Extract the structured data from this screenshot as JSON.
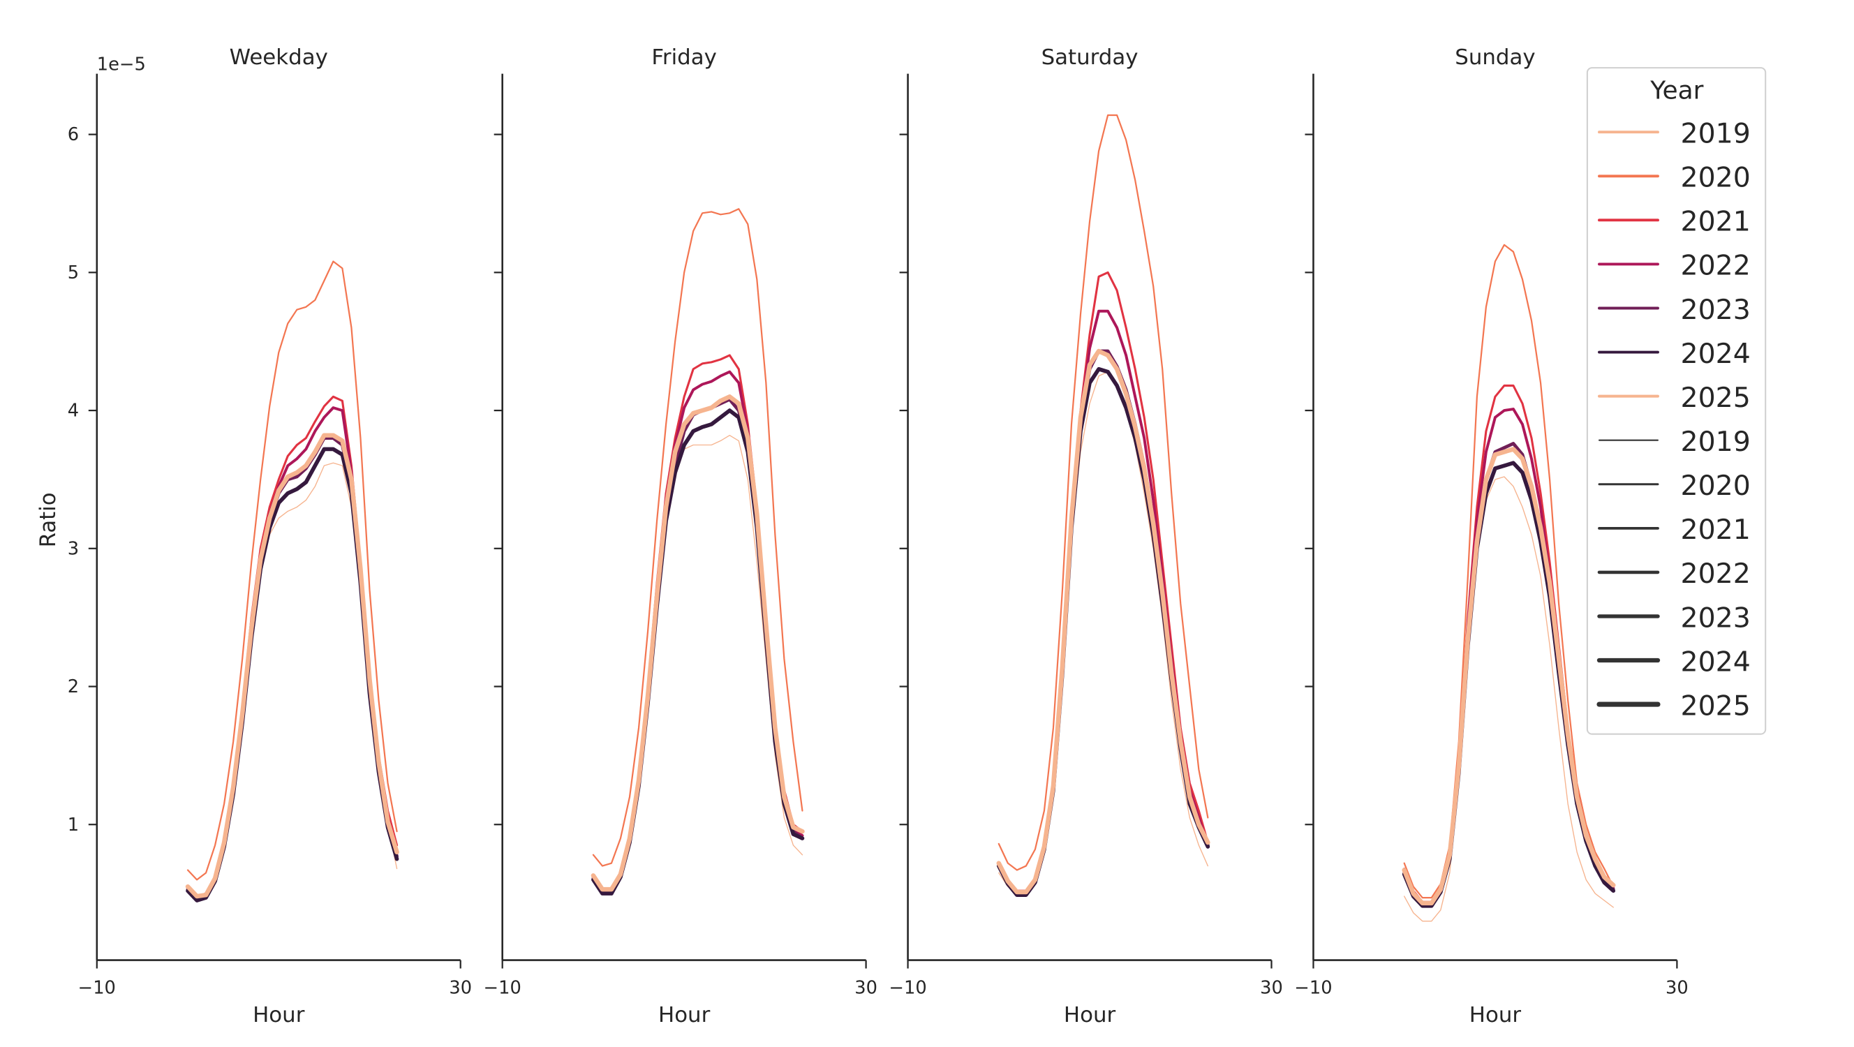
{
  "chart_data": {
    "type": "line",
    "x_label": "Hour",
    "y_label": "Ratio",
    "y_offset_text": "1e−5",
    "xlim": [
      -10,
      30
    ],
    "ylim": [
      0,
      6.43
    ],
    "x_ticks": [
      -10,
      30
    ],
    "x_tick_labels": [
      "−10",
      "30"
    ],
    "y_ticks": [
      1,
      2,
      3,
      4,
      5,
      6
    ],
    "y_tick_labels": [
      "1",
      "2",
      "3",
      "4",
      "5",
      "6"
    ],
    "hours": [
      0,
      1,
      2,
      3,
      4,
      5,
      6,
      7,
      8,
      9,
      10,
      11,
      12,
      13,
      14,
      15,
      16,
      17,
      18,
      19,
      20,
      21,
      22,
      23
    ],
    "colors": {
      "2019": "#f6b48f",
      "2020": "#f37651",
      "2021": "#e13342",
      "2022": "#ad1759",
      "2023": "#701f57",
      "2024": "#35193e",
      "2025": "#f6b48f"
    },
    "line_widths": {
      "2019": 0.8,
      "2020": 1.3,
      "2021": 1.8,
      "2022": 2.3,
      "2023": 2.8,
      "2024": 3.3,
      "2025": 3.8
    },
    "legend": {
      "title": "Year",
      "placement": "top-right",
      "hue_entries": [
        "2019",
        "2020",
        "2021",
        "2022",
        "2023",
        "2024",
        "2025"
      ],
      "size_entries": [
        "2019",
        "2020",
        "2021",
        "2022",
        "2023",
        "2024",
        "2025"
      ]
    },
    "panels": [
      {
        "title": "Weekday",
        "series": [
          {
            "name": "2019",
            "values": [
              0.55,
              0.47,
              0.48,
              0.6,
              0.86,
              1.25,
              1.75,
              2.35,
              2.85,
              3.1,
              3.22,
              3.27,
              3.3,
              3.35,
              3.45,
              3.6,
              3.62,
              3.6,
              3.3,
              2.7,
              1.95,
              1.4,
              1.0,
              0.68
            ]
          },
          {
            "name": "2020",
            "values": [
              0.67,
              0.6,
              0.65,
              0.85,
              1.15,
              1.6,
              2.2,
              2.9,
              3.5,
              4.03,
              4.42,
              4.63,
              4.73,
              4.75,
              4.8,
              4.94,
              5.08,
              5.03,
              4.6,
              3.8,
              2.7,
              1.9,
              1.3,
              0.95
            ]
          },
          {
            "name": "2021",
            "values": [
              0.55,
              0.48,
              0.5,
              0.62,
              0.88,
              1.3,
              1.85,
              2.5,
              3.0,
              3.3,
              3.5,
              3.67,
              3.75,
              3.8,
              3.92,
              4.03,
              4.1,
              4.07,
              3.6,
              2.9,
              2.1,
              1.5,
              1.1,
              0.85
            ]
          },
          {
            "name": "2022",
            "values": [
              0.54,
              0.47,
              0.49,
              0.61,
              0.87,
              1.28,
              1.82,
              2.45,
              2.95,
              3.25,
              3.45,
              3.6,
              3.65,
              3.72,
              3.85,
              3.95,
              4.02,
              4.0,
              3.55,
              2.85,
              2.05,
              1.45,
              1.05,
              0.8
            ]
          },
          {
            "name": "2023",
            "values": [
              0.53,
              0.46,
              0.48,
              0.6,
              0.86,
              1.26,
              1.78,
              2.4,
              2.9,
              3.2,
              3.4,
              3.5,
              3.52,
              3.58,
              3.68,
              3.8,
              3.8,
              3.75,
              3.45,
              2.8,
              2.0,
              1.4,
              1.0,
              0.77
            ]
          },
          {
            "name": "2024",
            "values": [
              0.52,
              0.45,
              0.47,
              0.59,
              0.84,
              1.22,
              1.74,
              2.35,
              2.85,
              3.15,
              3.33,
              3.4,
              3.43,
              3.48,
              3.6,
              3.72,
              3.72,
              3.68,
              3.4,
              2.75,
              1.95,
              1.38,
              0.98,
              0.75
            ]
          },
          {
            "name": "2025",
            "values": [
              0.55,
              0.48,
              0.49,
              0.61,
              0.87,
              1.27,
              1.8,
              2.42,
              2.92,
              3.22,
              3.42,
              3.52,
              3.55,
              3.6,
              3.7,
              3.82,
              3.82,
              3.78,
              3.5,
              2.85,
              2.05,
              1.45,
              1.02,
              0.8
            ]
          }
        ]
      },
      {
        "title": "Friday",
        "series": [
          {
            "name": "2019",
            "values": [
              0.6,
              0.52,
              0.53,
              0.63,
              0.88,
              1.3,
              1.9,
              2.6,
              3.2,
              3.55,
              3.72,
              3.75,
              3.75,
              3.75,
              3.78,
              3.82,
              3.78,
              3.5,
              2.9,
              2.2,
              1.5,
              1.05,
              0.85,
              0.78
            ]
          },
          {
            "name": "2020",
            "values": [
              0.78,
              0.7,
              0.72,
              0.9,
              1.2,
              1.7,
              2.4,
              3.2,
              3.9,
              4.5,
              5.0,
              5.3,
              5.43,
              5.44,
              5.42,
              5.43,
              5.46,
              5.35,
              4.95,
              4.2,
              3.1,
              2.2,
              1.6,
              1.1
            ]
          },
          {
            "name": "2021",
            "values": [
              0.63,
              0.53,
              0.54,
              0.65,
              0.9,
              1.35,
              2.0,
              2.75,
              3.4,
              3.8,
              4.1,
              4.3,
              4.34,
              4.35,
              4.37,
              4.4,
              4.3,
              3.9,
              3.3,
              2.5,
              1.75,
              1.25,
              1.0,
              0.95
            ]
          },
          {
            "name": "2022",
            "values": [
              0.62,
              0.52,
              0.53,
              0.64,
              0.9,
              1.33,
              1.95,
              2.7,
              3.35,
              3.75,
              4.02,
              4.15,
              4.19,
              4.21,
              4.25,
              4.28,
              4.2,
              3.85,
              3.25,
              2.45,
              1.7,
              1.2,
              0.97,
              0.92
            ]
          },
          {
            "name": "2023",
            "values": [
              0.61,
              0.51,
              0.51,
              0.63,
              0.88,
              1.3,
              1.9,
              2.6,
              3.25,
              3.6,
              3.85,
              3.97,
              4.0,
              4.02,
              4.05,
              4.08,
              4.0,
              3.75,
              3.2,
              2.4,
              1.65,
              1.2,
              0.95,
              0.9
            ]
          },
          {
            "name": "2024",
            "values": [
              0.6,
              0.5,
              0.5,
              0.62,
              0.87,
              1.28,
              1.88,
              2.58,
              3.2,
              3.55,
              3.75,
              3.85,
              3.88,
              3.9,
              3.95,
              4.0,
              3.95,
              3.7,
              3.15,
              2.35,
              1.6,
              1.15,
              0.93,
              0.9
            ]
          },
          {
            "name": "2025",
            "values": [
              0.63,
              0.53,
              0.53,
              0.64,
              0.9,
              1.32,
              1.93,
              2.65,
              3.3,
              3.7,
              3.9,
              3.98,
              4.0,
              4.02,
              4.07,
              4.1,
              4.05,
              3.8,
              3.25,
              2.45,
              1.7,
              1.2,
              0.98,
              0.95
            ]
          }
        ]
      },
      {
        "title": "Saturday",
        "series": [
          {
            "name": "2019",
            "values": [
              0.65,
              0.55,
              0.5,
              0.5,
              0.58,
              0.82,
              1.25,
              2.1,
              3.1,
              3.7,
              4.05,
              4.25,
              4.28,
              4.2,
              4.0,
              3.75,
              3.4,
              3.0,
              2.5,
              1.9,
              1.4,
              1.05,
              0.85,
              0.7
            ]
          },
          {
            "name": "2020",
            "values": [
              0.86,
              0.72,
              0.67,
              0.7,
              0.82,
              1.1,
              1.7,
              2.7,
              3.9,
              4.7,
              5.37,
              5.88,
              6.14,
              6.14,
              5.96,
              5.67,
              5.3,
              4.9,
              4.3,
              3.4,
              2.6,
              2.0,
              1.4,
              1.05
            ]
          },
          {
            "name": "2021",
            "values": [
              0.72,
              0.6,
              0.52,
              0.52,
              0.6,
              0.85,
              1.3,
              2.2,
              3.3,
              4.0,
              4.55,
              4.97,
              5.0,
              4.87,
              4.6,
              4.3,
              3.95,
              3.5,
              2.9,
              2.3,
              1.7,
              1.3,
              1.1,
              0.87
            ]
          },
          {
            "name": "2022",
            "values": [
              0.71,
              0.59,
              0.51,
              0.51,
              0.6,
              0.84,
              1.28,
              2.15,
              3.25,
              3.95,
              4.45,
              4.72,
              4.72,
              4.6,
              4.4,
              4.1,
              3.8,
              3.35,
              2.8,
              2.2,
              1.65,
              1.25,
              1.05,
              0.85
            ]
          },
          {
            "name": "2023",
            "values": [
              0.7,
              0.58,
              0.5,
              0.5,
              0.59,
              0.83,
              1.27,
              2.12,
              3.2,
              3.9,
              4.3,
              4.43,
              4.43,
              4.32,
              4.15,
              3.9,
              3.6,
              3.2,
              2.7,
              2.1,
              1.6,
              1.2,
              1.0,
              0.85
            ]
          },
          {
            "name": "2024",
            "values": [
              0.7,
              0.57,
              0.49,
              0.49,
              0.58,
              0.82,
              1.25,
              2.1,
              3.15,
              3.85,
              4.2,
              4.3,
              4.28,
              4.18,
              4.02,
              3.8,
              3.5,
              3.1,
              2.6,
              2.05,
              1.55,
              1.15,
              0.98,
              0.84
            ]
          },
          {
            "name": "2025",
            "values": [
              0.72,
              0.59,
              0.51,
              0.51,
              0.6,
              0.84,
              1.28,
              2.15,
              3.22,
              3.95,
              4.33,
              4.43,
              4.4,
              4.3,
              4.12,
              3.88,
              3.58,
              3.18,
              2.68,
              2.1,
              1.6,
              1.2,
              1.0,
              0.87
            ]
          }
        ]
      },
      {
        "title": "Sunday",
        "series": [
          {
            "name": "2019",
            "values": [
              0.48,
              0.36,
              0.3,
              0.3,
              0.38,
              0.65,
              1.3,
              2.2,
              3.0,
              3.35,
              3.5,
              3.52,
              3.45,
              3.3,
              3.1,
              2.8,
              2.3,
              1.7,
              1.15,
              0.8,
              0.6,
              0.5,
              0.45,
              0.4
            ]
          },
          {
            "name": "2020",
            "values": [
              0.72,
              0.55,
              0.47,
              0.47,
              0.57,
              0.85,
              1.6,
              2.8,
              4.1,
              4.75,
              5.08,
              5.2,
              5.15,
              4.95,
              4.65,
              4.2,
              3.5,
              2.6,
              1.9,
              1.3,
              1.0,
              0.8,
              0.68,
              0.55
            ]
          },
          {
            "name": "2021",
            "values": [
              0.68,
              0.52,
              0.44,
              0.44,
              0.54,
              0.8,
              1.5,
              2.5,
              3.3,
              3.85,
              4.1,
              4.18,
              4.18,
              4.05,
              3.8,
              3.4,
              2.9,
              2.3,
              1.7,
              1.25,
              0.95,
              0.75,
              0.62,
              0.55
            ]
          },
          {
            "name": "2022",
            "values": [
              0.66,
              0.5,
              0.43,
              0.43,
              0.53,
              0.78,
              1.45,
              2.45,
              3.2,
              3.7,
              3.95,
              4.0,
              4.01,
              3.9,
              3.65,
              3.3,
              2.8,
              2.25,
              1.65,
              1.2,
              0.92,
              0.73,
              0.6,
              0.54
            ]
          },
          {
            "name": "2023",
            "values": [
              0.65,
              0.49,
              0.42,
              0.42,
              0.52,
              0.76,
              1.4,
              2.35,
              3.05,
              3.5,
              3.7,
              3.73,
              3.76,
              3.68,
              3.45,
              3.15,
              2.7,
              2.15,
              1.6,
              1.18,
              0.9,
              0.72,
              0.6,
              0.53
            ]
          },
          {
            "name": "2024",
            "values": [
              0.64,
              0.48,
              0.41,
              0.41,
              0.51,
              0.75,
              1.38,
              2.3,
              3.0,
              3.4,
              3.58,
              3.6,
              3.62,
              3.55,
              3.35,
              3.05,
              2.65,
              2.1,
              1.58,
              1.15,
              0.88,
              0.7,
              0.58,
              0.52
            ]
          },
          {
            "name": "2025",
            "values": [
              0.67,
              0.5,
              0.43,
              0.43,
              0.53,
              0.78,
              1.42,
              2.35,
              3.05,
              3.5,
              3.68,
              3.7,
              3.72,
              3.65,
              3.45,
              3.15,
              2.75,
              2.2,
              1.65,
              1.2,
              0.92,
              0.75,
              0.62,
              0.56
            ]
          }
        ]
      }
    ]
  }
}
